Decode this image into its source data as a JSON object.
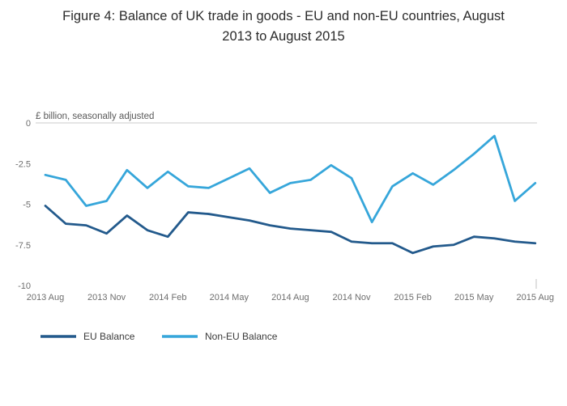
{
  "title": {
    "line1": "Figure 4: Balance of UK trade in goods - EU and non-EU countries, August",
    "line2": "2013 to August 2015"
  },
  "chart_data": {
    "type": "line",
    "title": "Figure 4: Balance of UK trade in goods - EU and non-EU countries, August 2013 to August 2015",
    "subtitle": "£ billion, seasonally adjusted",
    "xlabel": "",
    "ylabel": "£ billion",
    "ylim": [
      -10,
      0
    ],
    "grid": "zero-baseline-only",
    "legend_position": "bottom-left",
    "categories": [
      "2013 Aug",
      "2013 Sep",
      "2013 Oct",
      "2013 Nov",
      "2013 Dec",
      "2014 Jan",
      "2014 Feb",
      "2014 Mar",
      "2014 Apr",
      "2014 May",
      "2014 Jun",
      "2014 Jul",
      "2014 Aug",
      "2014 Sep",
      "2014 Oct",
      "2014 Nov",
      "2014 Dec",
      "2015 Jan",
      "2015 Feb",
      "2015 Mar",
      "2015 Apr",
      "2015 May",
      "2015 Jun",
      "2015 Jul",
      "2015 Aug"
    ],
    "xticks": [
      {
        "index": 0,
        "label": "2013 Aug"
      },
      {
        "index": 3,
        "label": "2013 Nov"
      },
      {
        "index": 6,
        "label": "2014 Feb"
      },
      {
        "index": 9,
        "label": "2014 May"
      },
      {
        "index": 12,
        "label": "2014 Aug"
      },
      {
        "index": 15,
        "label": "2014 Nov"
      },
      {
        "index": 18,
        "label": "2015 Feb"
      },
      {
        "index": 21,
        "label": "2015 May"
      },
      {
        "index": 24,
        "label": "2015 Aug"
      }
    ],
    "yticks": [
      {
        "value": 0,
        "label": "0"
      },
      {
        "value": -2.5,
        "label": "-2.5"
      },
      {
        "value": -5,
        "label": "-5"
      },
      {
        "value": -7.5,
        "label": "-7.5"
      },
      {
        "value": -10,
        "label": "-10"
      }
    ],
    "series": [
      {
        "name": "EU Balance",
        "color": "#235a8c",
        "values": [
          -5.1,
          -6.2,
          -6.3,
          -6.8,
          -5.7,
          -6.6,
          -7.0,
          -5.5,
          -5.6,
          -5.8,
          -6.0,
          -6.3,
          -6.5,
          -6.6,
          -6.7,
          -7.3,
          -7.4,
          -7.4,
          -8.0,
          -7.6,
          -7.5,
          -7.0,
          -7.1,
          -7.3,
          -7.4
        ]
      },
      {
        "name": "Non-EU Balance",
        "color": "#36a6da",
        "values": [
          -3.2,
          -3.5,
          -5.1,
          -4.8,
          -2.9,
          -4.0,
          -3.0,
          -3.9,
          -4.0,
          -3.4,
          -2.8,
          -4.3,
          -3.7,
          -3.5,
          -2.6,
          -3.4,
          -6.1,
          -3.9,
          -3.1,
          -3.8,
          -2.9,
          -1.9,
          -0.8,
          -4.8,
          -3.7
        ]
      }
    ]
  }
}
